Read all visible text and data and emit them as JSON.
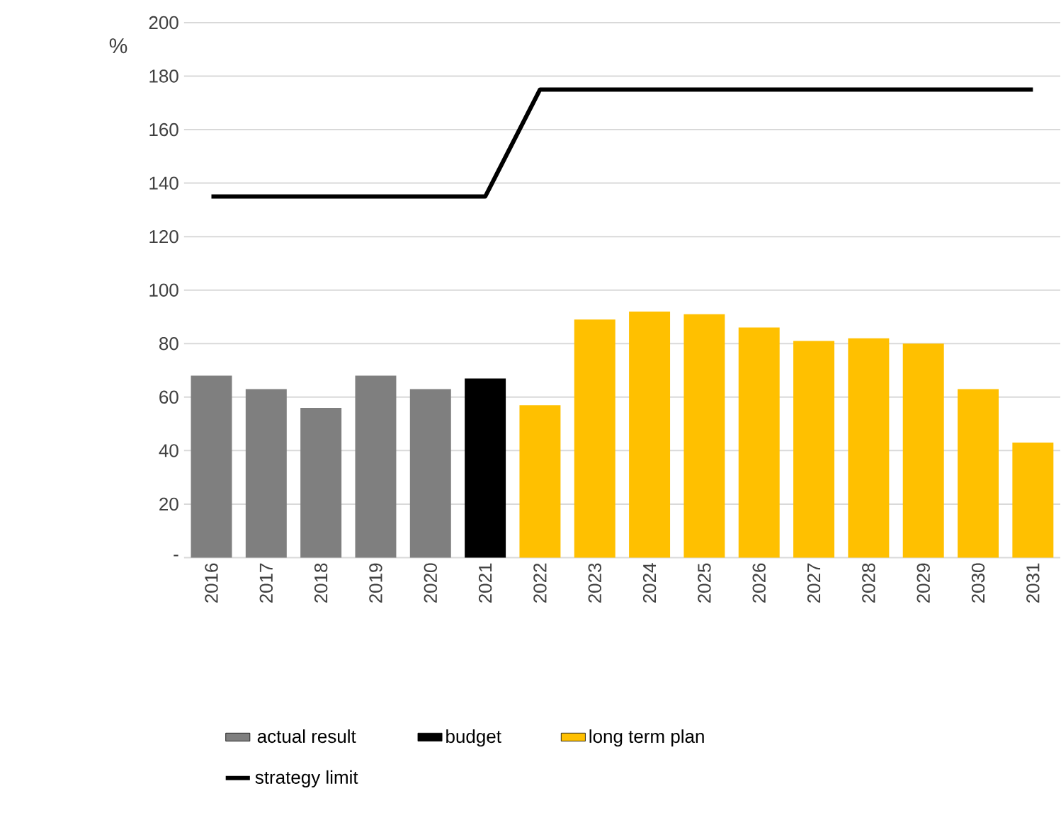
{
  "chart_data": {
    "type": "bar",
    "ylabel": "%",
    "categories": [
      "2016",
      "2017",
      "2018",
      "2019",
      "2020",
      "2021",
      "2022",
      "2023",
      "2024",
      "2025",
      "2026",
      "2027",
      "2028",
      "2029",
      "2030",
      "2031"
    ],
    "series": [
      {
        "name": "actual result",
        "color": "#7f7f7f",
        "values": [
          68,
          63,
          56,
          68,
          63,
          null,
          null,
          null,
          null,
          null,
          null,
          null,
          null,
          null,
          null,
          null
        ]
      },
      {
        "name": "budget",
        "color": "#000000",
        "values": [
          null,
          null,
          null,
          null,
          null,
          67,
          null,
          null,
          null,
          null,
          null,
          null,
          null,
          null,
          null,
          null
        ]
      },
      {
        "name": "long term plan",
        "color": "#ffc000",
        "values": [
          null,
          null,
          null,
          null,
          null,
          null,
          57,
          89,
          92,
          91,
          86,
          81,
          82,
          80,
          63,
          43
        ]
      },
      {
        "name": "strategy limit",
        "type": "line",
        "color": "#000000",
        "values": [
          135,
          135,
          135,
          135,
          135,
          135,
          175,
          175,
          175,
          175,
          175,
          175,
          175,
          175,
          175,
          175
        ]
      }
    ],
    "ylim": [
      0,
      200
    ],
    "yticks": [
      {
        "value": 0,
        "label": "-"
      },
      20,
      40,
      60,
      80,
      100,
      120,
      140,
      160,
      180,
      200
    ],
    "grid": "y",
    "legend": "bottom",
    "marker": "none"
  }
}
